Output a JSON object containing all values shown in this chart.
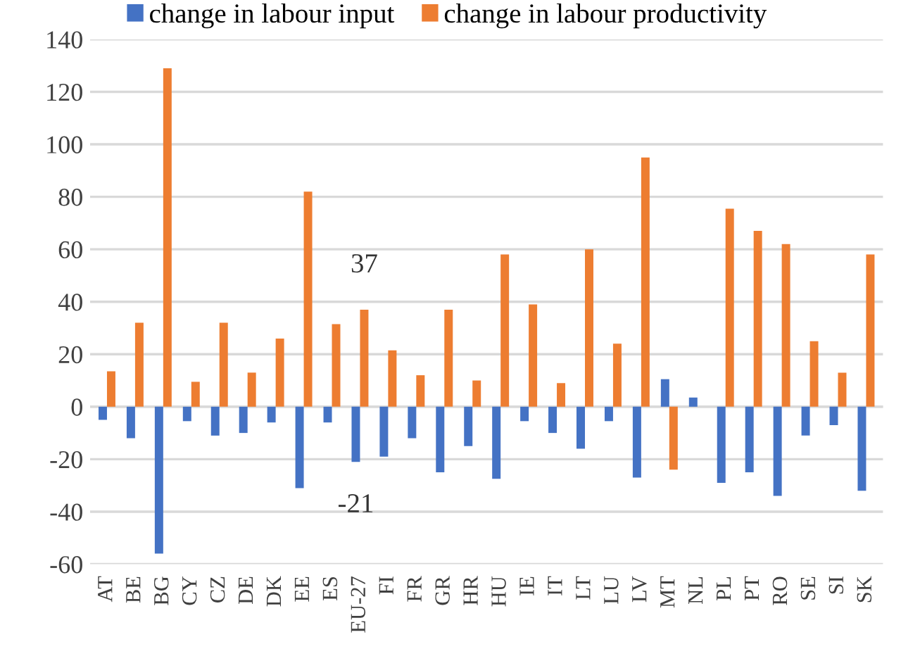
{
  "chart_data": {
    "type": "bar",
    "categories": [
      "AT",
      "BE",
      "BG",
      "CY",
      "CZ",
      "DE",
      "DK",
      "EE",
      "ES",
      "EU-27",
      "FI",
      "FR",
      "GR",
      "HR",
      "HU",
      "IE",
      "IT",
      "LT",
      "LU",
      "LV",
      "MT",
      "NL",
      "PL",
      "PT",
      "RO",
      "SE",
      "SI",
      "SK"
    ],
    "series": [
      {
        "name": "change in labour input",
        "color": "#4472c4",
        "values": [
          -5,
          -12,
          -56,
          -5.5,
          -11,
          -10,
          -6,
          -31,
          -6,
          -21,
          -19,
          -12,
          -25,
          -15,
          -27.5,
          -5.5,
          -10,
          -16,
          -5.5,
          -27,
          10.5,
          3.5,
          -29,
          -25,
          -34,
          -11,
          -7,
          -32
        ],
        "value_labels": [
          null,
          null,
          null,
          null,
          null,
          null,
          null,
          null,
          null,
          "-21",
          null,
          null,
          null,
          null,
          null,
          null,
          null,
          null,
          null,
          null,
          null,
          null,
          null,
          null,
          null,
          null,
          null,
          null
        ]
      },
      {
        "name": "change in labour productivity",
        "color": "#ed7d31",
        "values": [
          13.5,
          32,
          129,
          9.5,
          32,
          13,
          26,
          82,
          31.5,
          37,
          21.5,
          12,
          37,
          10,
          58,
          39,
          9,
          60,
          24,
          95,
          -24,
          null,
          75.5,
          67,
          62,
          25,
          13,
          58
        ],
        "value_labels": [
          null,
          null,
          null,
          null,
          null,
          null,
          null,
          null,
          null,
          "37",
          null,
          null,
          null,
          null,
          null,
          null,
          null,
          null,
          null,
          null,
          null,
          null,
          null,
          null,
          null,
          null,
          null,
          null
        ]
      }
    ],
    "ylim": [
      -60,
      140
    ],
    "yticks": [
      {
        "value": -60,
        "label": "-60"
      },
      {
        "value": -40,
        "label": "-40"
      },
      {
        "value": -20,
        "label": "-20"
      },
      0,
      20,
      40,
      60,
      80,
      100,
      120,
      140
    ],
    "grid": "y",
    "legend": "top"
  }
}
